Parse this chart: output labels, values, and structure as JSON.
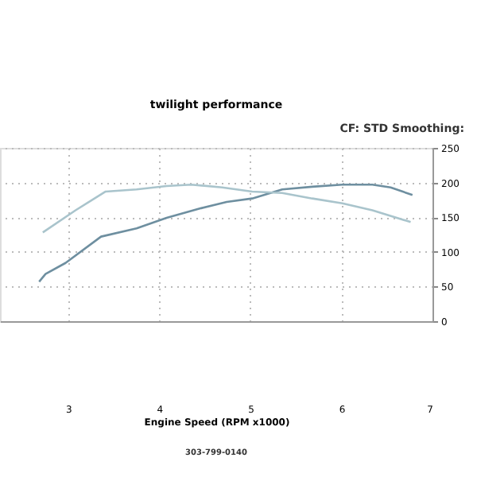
{
  "chart_data": {
    "type": "line",
    "title": "twilight performance",
    "xlabel": "Engine Speed (RPM x1000)",
    "annotations": [
      "CF: STD  Smoothing:",
      "303-799-0140"
    ],
    "xlim": [
      2.25,
      7
    ],
    "xticks": [
      3,
      4,
      5,
      6,
      7
    ],
    "y2lim": [
      0,
      250
    ],
    "y2ticks": [
      0,
      50,
      100,
      150,
      200,
      250
    ],
    "grid": true,
    "marker": "none",
    "line_style": "solid",
    "series": [
      {
        "color": "#6e8fa0",
        "axis": "y2",
        "x": [
          2.68,
          2.75,
          2.97,
          3.36,
          3.75,
          4.08,
          4.46,
          4.74,
          5.02,
          5.35,
          5.68,
          6.01,
          6.34,
          6.54,
          6.78
        ],
        "values": [
          57,
          68,
          84,
          122,
          134,
          149,
          163,
          172,
          177,
          190,
          194,
          197,
          197,
          193,
          182
        ]
      },
      {
        "color": "#a9c4cc",
        "axis": "y2",
        "x": [
          2.72,
          3.08,
          3.41,
          3.75,
          4.08,
          4.35,
          4.69,
          5.02,
          5.35,
          5.68,
          6.01,
          6.34,
          6.76
        ],
        "values": [
          128,
          160,
          187,
          190,
          195,
          197,
          193,
          187,
          185,
          177,
          170,
          160,
          143
        ]
      }
    ]
  }
}
